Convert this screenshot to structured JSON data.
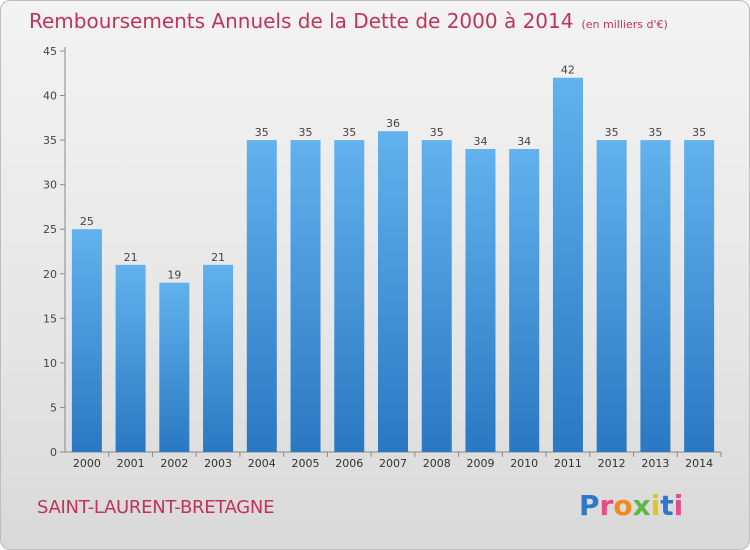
{
  "header": {
    "title": "Remboursements Annuels de la Dette de 2000 à 2014",
    "unit": "(en milliers d'€)"
  },
  "footer": {
    "town": "SAINT-LAURENT-BRETAGNE",
    "logo": {
      "text": "Proxiti",
      "letter_colors": [
        "#2f77c9",
        "#e84b8a",
        "#f08a1c",
        "#5fb846",
        "#e2c51a",
        "#2f77c9",
        "#e84b8a"
      ]
    }
  },
  "colors": {
    "title": "#c0335b",
    "bar_light": "#62b2ee",
    "bar_dark": "#2a78c2"
  },
  "chart_data": {
    "type": "bar",
    "title": "Remboursements Annuels de la Dette de 2000 à 2014",
    "categories": [
      "2000",
      "2001",
      "2002",
      "2003",
      "2004",
      "2005",
      "2006",
      "2007",
      "2008",
      "2009",
      "2010",
      "2011",
      "2012",
      "2013",
      "2014"
    ],
    "values": [
      25,
      21,
      19,
      21,
      35,
      35,
      35,
      36,
      35,
      34,
      34,
      42,
      35,
      35,
      35
    ],
    "data_labels": [
      "25",
      "21",
      "19",
      "21",
      "35",
      "35",
      "35",
      "36",
      "35",
      "34",
      "34",
      "42",
      "35",
      "35",
      "35"
    ],
    "yticks": [
      "0",
      "5",
      "10",
      "15",
      "20",
      "25",
      "30",
      "35",
      "40",
      "45"
    ],
    "ylim": [
      0,
      45
    ],
    "grid": false
  }
}
